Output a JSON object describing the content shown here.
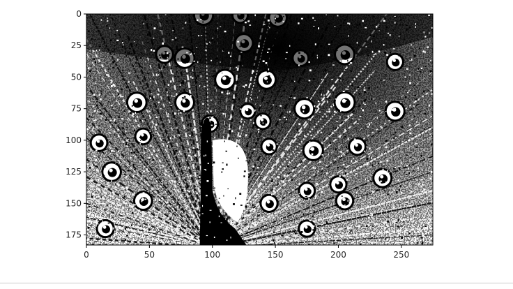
{
  "chart_data": {
    "type": "heatmap",
    "subtype": "binary-image",
    "title": "",
    "xlabel": "",
    "ylabel": "",
    "colormap": [
      "#000000",
      "#ffffff"
    ],
    "image_shape": [
      183,
      275
    ],
    "xlim": [
      0,
      275
    ],
    "ylim": [
      183,
      0
    ],
    "x_ticks": [
      0,
      50,
      100,
      150,
      200,
      250
    ],
    "y_ticks": [
      0,
      25,
      50,
      75,
      100,
      125,
      150,
      175
    ],
    "grid": false,
    "legend": "none"
  },
  "colors": {
    "axes_frame": "#000000",
    "background": "#ffffff",
    "divider": "#c9c9c9"
  }
}
